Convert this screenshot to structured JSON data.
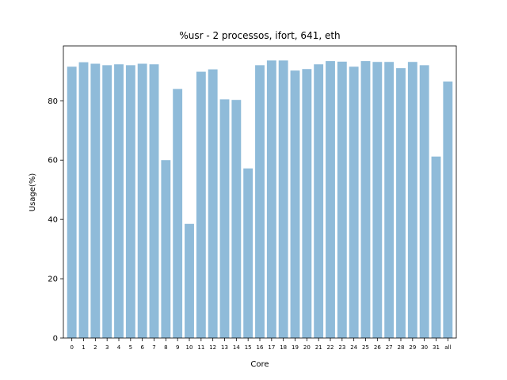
{
  "chart_data": {
    "type": "bar",
    "title": "%usr - 2 processos, ifort, 641, eth",
    "xlabel": "Core",
    "ylabel": "Usage(%)",
    "ylim": [
      0,
      98.5
    ],
    "yticks": [
      0,
      20,
      40,
      60,
      80
    ],
    "bar_color": "#8fbbd9",
    "categories": [
      "0",
      "1",
      "2",
      "3",
      "4",
      "5",
      "6",
      "7",
      "8",
      "9",
      "10",
      "11",
      "12",
      "13",
      "14",
      "15",
      "16",
      "17",
      "18",
      "19",
      "20",
      "21",
      "22",
      "23",
      "24",
      "25",
      "26",
      "27",
      "28",
      "29",
      "30",
      "31",
      "all"
    ],
    "values": [
      91.5,
      93.0,
      92.5,
      92.0,
      92.3,
      92.0,
      92.5,
      92.3,
      60.0,
      84.0,
      38.5,
      89.8,
      90.6,
      80.5,
      80.3,
      57.2,
      92.0,
      93.6,
      93.6,
      90.2,
      90.7,
      92.3,
      93.4,
      93.2,
      91.5,
      93.4,
      93.1,
      93.1,
      91.0,
      93.1,
      92.0,
      61.2,
      86.5
    ]
  }
}
